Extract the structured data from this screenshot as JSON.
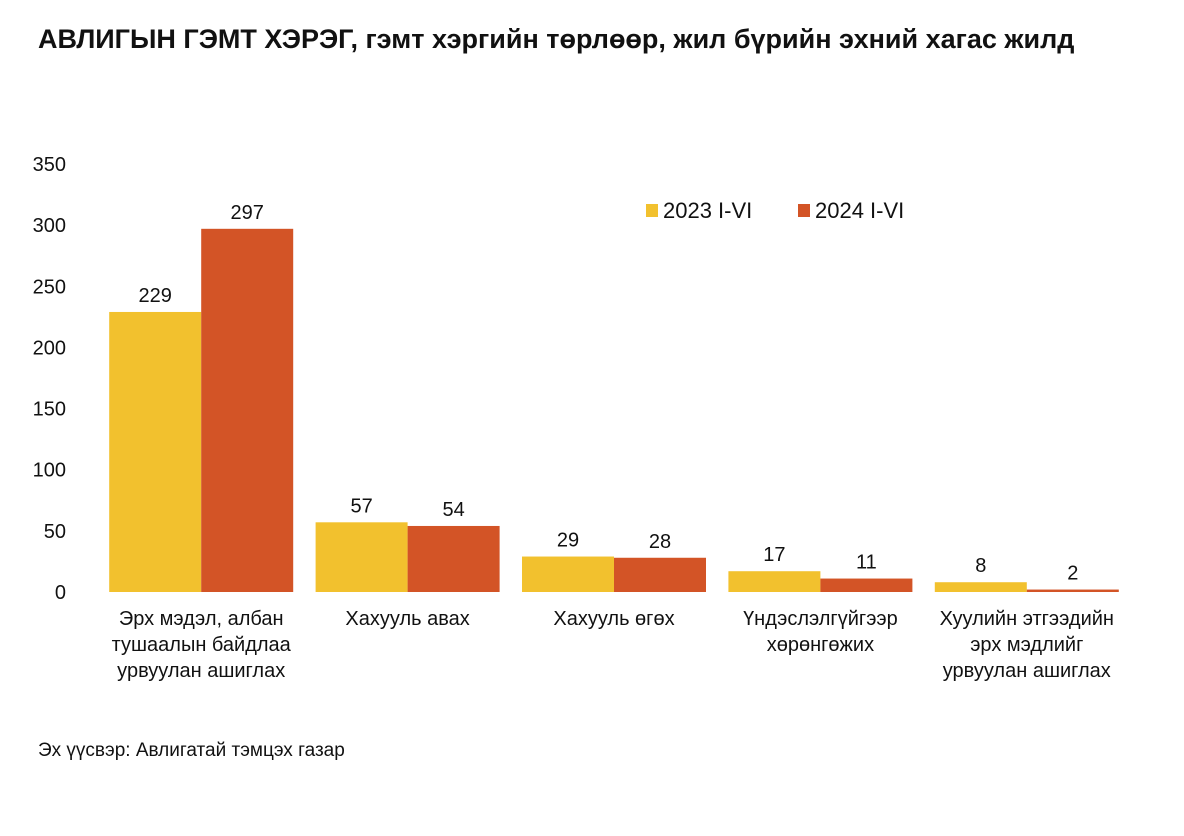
{
  "title": "АВЛИГЫН ГЭМТ ХЭРЭГ, гэмт хэргийн төрлөөр, жил бүрийн эхний хагас жилд",
  "source": "Эх үүсвэр: Авлигатай тэмцэх газар",
  "colors": {
    "series_2023": "#F2C12E",
    "series_2024": "#D35426"
  },
  "chart_data": {
    "type": "bar",
    "title": "АВЛИГЫН ГЭМТ ХЭРЭГ, гэмт хэргийн төрлөөр, жил бүрийн эхний хагас жилд",
    "categories": [
      "Эрх мэдэл, албан тушаалын байдлаа урвуулан ашиглах",
      "Хахууль авах",
      "Хахууль өгөх",
      "Үндэслэлгүйгээр хөрөнгөжих",
      "Хуулийн этгээдийн эрх мэдлийг урвуулан ашиглах"
    ],
    "category_lines": [
      [
        "Эрх мэдэл, албан",
        "тушаалын байдлаа",
        "урвуулан ашиглах"
      ],
      [
        "Хахууль авах"
      ],
      [
        "Хахууль өгөх"
      ],
      [
        "Үндэслэлгүйгээр",
        "хөрөнгөжих"
      ],
      [
        "Хуулийн этгээдийн",
        "эрх мэдлийг",
        "урвуулан ашиглах"
      ]
    ],
    "series": [
      {
        "name": "2023 I-VI",
        "values": [
          229,
          57,
          29,
          17,
          8
        ]
      },
      {
        "name": "2024 I-VI",
        "values": [
          297,
          54,
          28,
          11,
          2
        ]
      }
    ],
    "y_ticks": [
      "0",
      "50",
      "100",
      "150",
      "200",
      "250",
      "300",
      "350"
    ],
    "ylim": [
      0,
      350
    ],
    "legend_position": "top-right",
    "grid": false
  }
}
